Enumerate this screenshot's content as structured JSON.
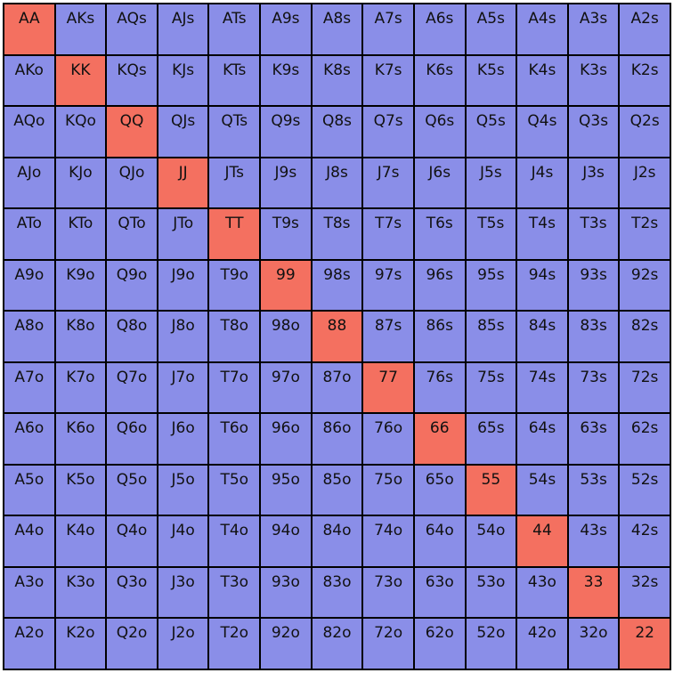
{
  "colors": {
    "pair": "#f47060",
    "other": "#8a8ee8",
    "border": "#000000"
  },
  "grid": {
    "rows": [
      [
        "AA",
        "AKs",
        "AQs",
        "AJs",
        "ATs",
        "A9s",
        "A8s",
        "A7s",
        "A6s",
        "A5s",
        "A4s",
        "A3s",
        "A2s"
      ],
      [
        "AKo",
        "KK",
        "KQs",
        "KJs",
        "KTs",
        "K9s",
        "K8s",
        "K7s",
        "K6s",
        "K5s",
        "K4s",
        "K3s",
        "K2s"
      ],
      [
        "AQo",
        "KQo",
        "QQ",
        "QJs",
        "QTs",
        "Q9s",
        "Q8s",
        "Q7s",
        "Q6s",
        "Q5s",
        "Q4s",
        "Q3s",
        "Q2s"
      ],
      [
        "AJo",
        "KJo",
        "QJo",
        "JJ",
        "JTs",
        "J9s",
        "J8s",
        "J7s",
        "J6s",
        "J5s",
        "J4s",
        "J3s",
        "J2s"
      ],
      [
        "ATo",
        "KTo",
        "QTo",
        "JTo",
        "TT",
        "T9s",
        "T8s",
        "T7s",
        "T6s",
        "T5s",
        "T4s",
        "T3s",
        "T2s"
      ],
      [
        "A9o",
        "K9o",
        "Q9o",
        "J9o",
        "T9o",
        "99",
        "98s",
        "97s",
        "96s",
        "95s",
        "94s",
        "93s",
        "92s"
      ],
      [
        "A8o",
        "K8o",
        "Q8o",
        "J8o",
        "T8o",
        "98o",
        "88",
        "87s",
        "86s",
        "85s",
        "84s",
        "83s",
        "82s"
      ],
      [
        "A7o",
        "K7o",
        "Q7o",
        "J7o",
        "T7o",
        "97o",
        "87o",
        "77",
        "76s",
        "75s",
        "74s",
        "73s",
        "72s"
      ],
      [
        "A6o",
        "K6o",
        "Q6o",
        "J6o",
        "T6o",
        "96o",
        "86o",
        "76o",
        "66",
        "65s",
        "64s",
        "63s",
        "62s"
      ],
      [
        "A5o",
        "K5o",
        "Q5o",
        "J5o",
        "T5o",
        "95o",
        "85o",
        "75o",
        "65o",
        "55",
        "54s",
        "53s",
        "52s"
      ],
      [
        "A4o",
        "K4o",
        "Q4o",
        "J4o",
        "T4o",
        "94o",
        "84o",
        "74o",
        "64o",
        "54o",
        "44",
        "43s",
        "42s"
      ],
      [
        "A3o",
        "K3o",
        "Q3o",
        "J3o",
        "T3o",
        "93o",
        "83o",
        "73o",
        "63o",
        "53o",
        "43o",
        "33",
        "32s"
      ],
      [
        "A2o",
        "K2o",
        "Q2o",
        "J2o",
        "T2o",
        "92o",
        "82o",
        "72o",
        "62o",
        "52o",
        "42o",
        "32o",
        "22"
      ]
    ]
  }
}
